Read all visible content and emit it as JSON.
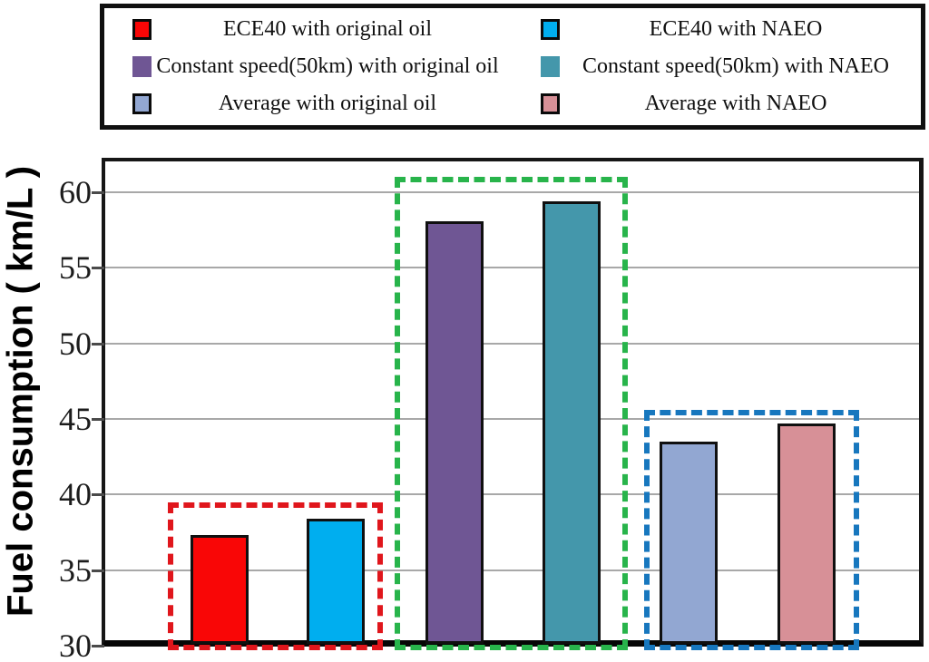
{
  "chart_data": {
    "type": "bar",
    "title": "",
    "xlabel": "",
    "ylabel": "Fuel consumption ( km/L )",
    "ylim": [
      30,
      62
    ],
    "yticks": [
      30,
      35,
      40,
      45,
      50,
      55,
      60
    ],
    "grid": true,
    "legend_position": "top",
    "series": [
      {
        "name": "ECE40 with original oil",
        "value": 37.3,
        "color": "#f90606"
      },
      {
        "name": "ECE40 with NAEO",
        "value": 38.4,
        "color": "#00aeef"
      },
      {
        "name": "Constant speed(50km) with original oil",
        "value": 58.1,
        "color": "#6f5694"
      },
      {
        "name": "Constant speed(50km) with NAEO",
        "value": 59.4,
        "color": "#4497ab"
      },
      {
        "name": "Average with original oil",
        "value": 43.5,
        "color": "#92a7d2"
      },
      {
        "name": "Average with NAEO",
        "value": 44.7,
        "color": "#d79097"
      }
    ],
    "highlight_boxes": [
      {
        "group": "ECE40",
        "color": "#e0161c",
        "top_value": 39.5,
        "bars": [
          0,
          1
        ]
      },
      {
        "group": "Constant speed(50km)",
        "color": "#28b44b",
        "top_value": 61.0,
        "bars": [
          2,
          3
        ]
      },
      {
        "group": "Average",
        "color": "#1777be",
        "top_value": 45.6,
        "bars": [
          4,
          5
        ]
      }
    ]
  }
}
